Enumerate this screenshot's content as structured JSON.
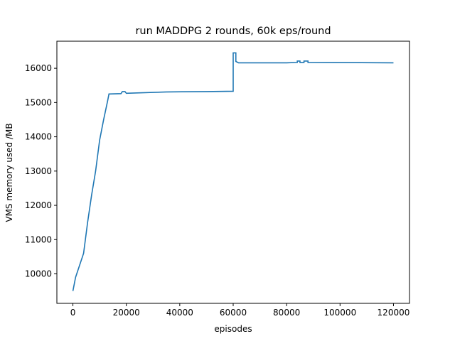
{
  "chart_data": {
    "type": "line",
    "title": "run MADDPG 2 rounds, 60k eps/round",
    "x_label": "episodes",
    "y_label": "VMS memory used /MB",
    "x": [
      0,
      1000,
      2500,
      4000,
      5500,
      7000,
      8500,
      10000,
      11500,
      13000,
      13500,
      18000,
      18500,
      19500,
      20000,
      35000,
      50000,
      60000,
      60000,
      61000,
      61000,
      62000,
      80000,
      84000,
      84000,
      85000,
      85000,
      86500,
      86500,
      88000,
      88000,
      120000
    ],
    "series": [
      {
        "name": "vms",
        "color": "#1f77b4",
        "values": [
          9500,
          9900,
          10250,
          10600,
          11500,
          12300,
          13000,
          13900,
          14500,
          15050,
          15250,
          15260,
          15320,
          15320,
          15270,
          15310,
          15320,
          15330,
          16450,
          16450,
          16200,
          16160,
          16160,
          16170,
          16210,
          16210,
          16170,
          16170,
          16210,
          16210,
          16170,
          16160
        ]
      }
    ],
    "xlim": [
      -6000,
      126000
    ],
    "ylim": [
      9140,
      16790
    ],
    "xticks": [
      0,
      20000,
      40000,
      60000,
      80000,
      100000,
      120000
    ],
    "yticks": [
      10000,
      11000,
      12000,
      13000,
      14000,
      15000,
      16000
    ]
  }
}
